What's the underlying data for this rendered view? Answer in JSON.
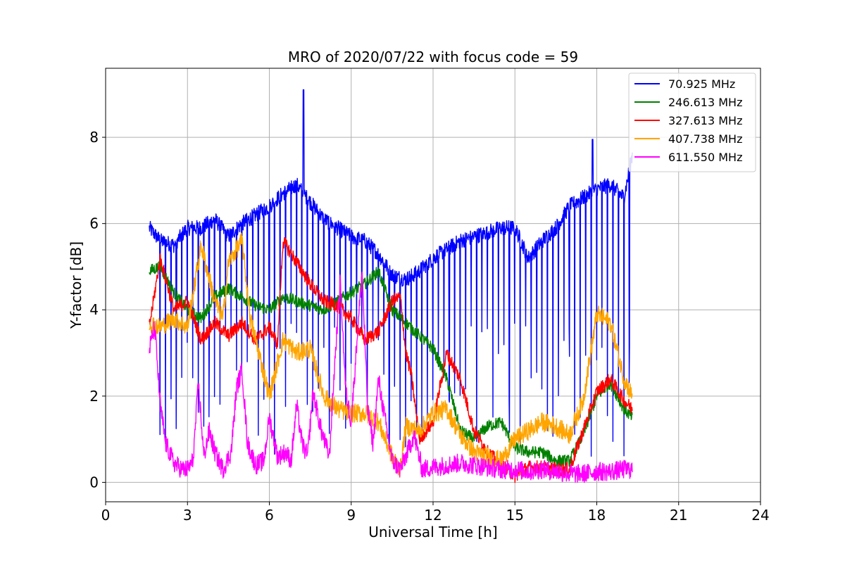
{
  "chart_data": {
    "type": "line",
    "title": "MRO of 2020/07/22 with focus code = 59",
    "xlabel": "Universal Time [h]",
    "ylabel": "Y-factor [dB]",
    "xlim": [
      0,
      24
    ],
    "ylim": [
      -0.45,
      9.6
    ],
    "xticks": [
      0,
      3,
      6,
      9,
      12,
      15,
      18,
      21,
      24
    ],
    "yticks": [
      0,
      2,
      4,
      6,
      8
    ],
    "grid": true,
    "legend_position": "top-right",
    "series": [
      {
        "name": " 70.925 MHz",
        "color": "#0000ff",
        "x": [
          1.6,
          2.0,
          2.5,
          3.0,
          3.5,
          4.0,
          4.5,
          5.0,
          5.5,
          6.0,
          6.5,
          7.0,
          7.5,
          8.0,
          8.5,
          9.0,
          9.5,
          10.0,
          10.5,
          11.0,
          11.5,
          12.0,
          12.5,
          13.0,
          13.5,
          14.0,
          14.5,
          15.0,
          15.5,
          16.0,
          16.5,
          17.0,
          17.5,
          18.0,
          18.5,
          19.0,
          19.3
        ],
        "values": [
          5.9,
          5.6,
          5.5,
          5.9,
          5.9,
          6.1,
          5.7,
          6.0,
          6.2,
          6.4,
          6.7,
          6.9,
          6.5,
          6.1,
          5.9,
          5.7,
          5.6,
          5.3,
          4.8,
          4.7,
          4.9,
          5.2,
          5.4,
          5.6,
          5.7,
          5.8,
          5.9,
          5.9,
          5.2,
          5.6,
          5.9,
          6.4,
          6.6,
          6.8,
          6.9,
          6.6,
          7.6
        ],
        "dips": [
          0.6
        ],
        "spikes": [
          {
            "x": 7.25,
            "y": 9.1
          },
          {
            "x": 17.85,
            "y": 7.95
          }
        ]
      },
      {
        "name": "246.613 MHz",
        "color": "#008000",
        "x": [
          1.6,
          2.0,
          2.5,
          3.0,
          3.5,
          4.0,
          4.5,
          5.0,
          5.5,
          6.0,
          6.5,
          7.0,
          7.5,
          8.0,
          8.5,
          9.0,
          9.5,
          10.0,
          10.5,
          11.0,
          11.5,
          12.0,
          12.5,
          13.0,
          13.5,
          14.0,
          14.5,
          15.0,
          15.5,
          16.0,
          16.5,
          17.0,
          17.5,
          18.0,
          18.5,
          19.0,
          19.3
        ],
        "values": [
          4.9,
          5.0,
          4.4,
          4.0,
          3.8,
          4.3,
          4.5,
          4.3,
          4.1,
          4.0,
          4.3,
          4.2,
          4.1,
          4.0,
          4.2,
          4.4,
          4.6,
          4.9,
          4.0,
          3.7,
          3.4,
          3.1,
          2.4,
          1.2,
          1.0,
          1.3,
          1.4,
          0.8,
          0.7,
          0.7,
          0.5,
          0.5,
          1.1,
          2.0,
          2.3,
          1.7,
          1.5
        ]
      },
      {
        "name": "327.613 MHz",
        "color": "#ff0000",
        "x": [
          1.6,
          2.0,
          2.5,
          3.0,
          3.5,
          4.0,
          4.5,
          5.0,
          5.5,
          6.0,
          6.3,
          6.5,
          7.0,
          7.5,
          8.0,
          8.5,
          9.0,
          9.5,
          10.0,
          10.5,
          10.8,
          11.0,
          11.2,
          11.5,
          12.0,
          12.5,
          13.0,
          13.5,
          14.0,
          14.5,
          15.0,
          15.5,
          16.0,
          16.5,
          17.0,
          17.5,
          18.0,
          18.5,
          19.0,
          19.3
        ],
        "values": [
          3.6,
          5.2,
          4.0,
          4.2,
          3.3,
          3.7,
          3.4,
          3.7,
          3.3,
          3.6,
          3.2,
          5.6,
          5.1,
          4.6,
          4.2,
          4.1,
          3.8,
          3.3,
          3.5,
          4.2,
          4.3,
          3.0,
          2.5,
          1.0,
          1.4,
          3.0,
          2.4,
          1.2,
          0.7,
          0.4,
          0.15,
          0.35,
          0.35,
          0.3,
          0.3,
          1.2,
          2.1,
          2.4,
          1.9,
          1.7
        ]
      },
      {
        "name": "407.738 MHz",
        "color": "#ffa500",
        "x": [
          1.6,
          2.0,
          2.5,
          3.0,
          3.5,
          4.0,
          4.3,
          4.5,
          5.0,
          5.3,
          5.5,
          6.0,
          6.5,
          7.0,
          7.5,
          8.0,
          8.5,
          9.0,
          9.5,
          10.0,
          10.5,
          10.8,
          11.0,
          11.5,
          12.0,
          12.5,
          13.0,
          13.5,
          14.0,
          14.5,
          15.0,
          15.5,
          16.0,
          16.5,
          17.0,
          17.5,
          18.0,
          18.5,
          19.0,
          19.3
        ],
        "values": [
          3.7,
          3.6,
          3.8,
          3.6,
          5.5,
          4.2,
          3.8,
          5.1,
          5.6,
          3.8,
          3.3,
          2.0,
          3.3,
          3.0,
          3.1,
          2.0,
          1.7,
          1.6,
          1.6,
          1.4,
          0.6,
          0.3,
          1.3,
          1.2,
          1.6,
          1.7,
          1.1,
          0.7,
          0.6,
          0.5,
          1.0,
          1.2,
          1.4,
          1.3,
          1.1,
          1.9,
          3.9,
          3.7,
          2.4,
          2.0
        ]
      },
      {
        "name": "611.550 MHz",
        "color": "#ff00ff",
        "x": [
          1.6,
          1.8,
          2.0,
          2.2,
          2.5,
          2.8,
          3.0,
          3.2,
          3.4,
          3.6,
          3.8,
          4.0,
          4.3,
          4.6,
          4.8,
          5.0,
          5.2,
          5.5,
          5.8,
          6.0,
          6.3,
          6.6,
          6.8,
          7.0,
          7.2,
          7.4,
          7.6,
          7.9,
          8.2,
          8.4,
          8.6,
          8.8,
          9.0,
          9.2,
          9.4,
          9.6,
          9.8,
          10.0,
          10.2,
          10.5,
          10.8,
          11.0,
          11.3,
          11.6,
          12.0,
          12.5,
          13.0,
          13.5,
          14.0,
          14.5,
          15.0,
          15.5,
          16.0,
          16.5,
          17.0,
          17.5,
          18.0,
          18.5,
          19.0,
          19.3
        ],
        "values": [
          3.1,
          3.6,
          1.8,
          0.9,
          0.45,
          0.3,
          0.3,
          0.5,
          2.3,
          0.6,
          1.2,
          0.7,
          0.3,
          0.7,
          2.2,
          2.6,
          0.9,
          0.4,
          0.5,
          1.5,
          0.6,
          0.7,
          0.5,
          1.8,
          0.9,
          0.6,
          2.1,
          1.2,
          0.6,
          2.8,
          4.7,
          2.1,
          1.4,
          3.2,
          4.9,
          1.7,
          0.9,
          2.4,
          1.6,
          0.5,
          0.3,
          0.6,
          1.1,
          0.3,
          0.35,
          0.4,
          0.45,
          0.4,
          0.35,
          0.3,
          0.3,
          0.25,
          0.3,
          0.25,
          0.2,
          0.2,
          0.25,
          0.25,
          0.3,
          0.3
        ]
      }
    ]
  }
}
